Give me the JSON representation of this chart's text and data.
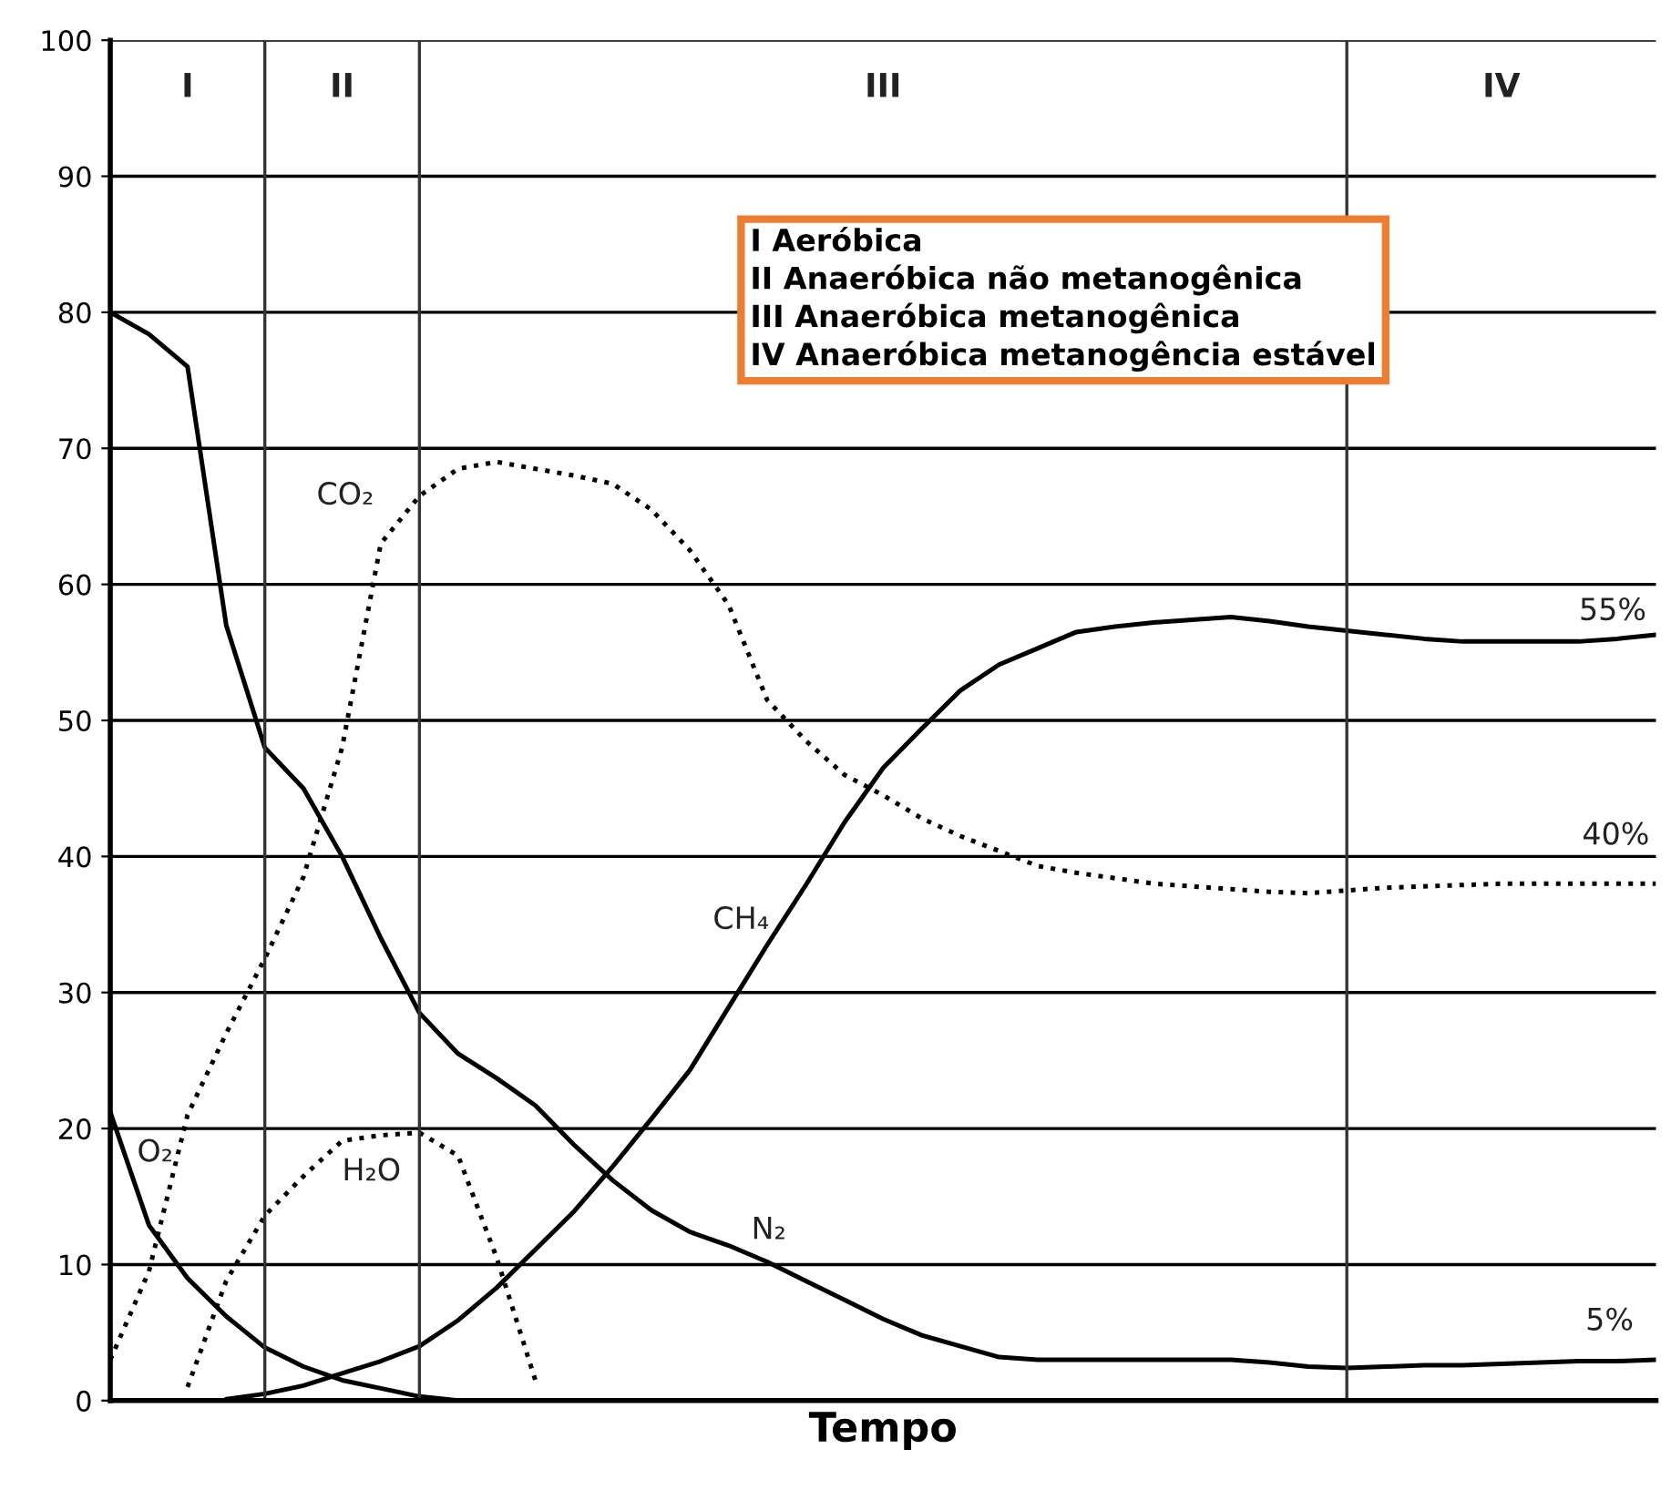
{
  "chart_data": {
    "type": "line",
    "xlabel": "Tempo",
    "categories": [
      null,
      null,
      null,
      null,
      null,
      null,
      null,
      null,
      null,
      null,
      null,
      null,
      null,
      null,
      null,
      null,
      null,
      null,
      null,
      null,
      null,
      null,
      null,
      null,
      null,
      null,
      null,
      null,
      null,
      null,
      null,
      null,
      null,
      null,
      null,
      null,
      null,
      null,
      null,
      null,
      null
    ],
    "ylim": [
      0,
      100
    ],
    "yticks": [
      0,
      10,
      20,
      30,
      40,
      50,
      60,
      70,
      80,
      90,
      100
    ],
    "grid": true,
    "marker": "none",
    "series": [
      {
        "color": "#000000",
        "line_style": "solid",
        "values": [
          80,
          78.4,
          76,
          57,
          48,
          45,
          40,
          34,
          28.5,
          25.5,
          23.7,
          21.7,
          18.8,
          16.2,
          14,
          12.4,
          11.4,
          10.2,
          8.8,
          7.4,
          6,
          4.8,
          4,
          3.2,
          3,
          3,
          3,
          3,
          3,
          3,
          2.8,
          2.5,
          2.4,
          2.5,
          2.6,
          2.6,
          2.7,
          2.8,
          2.9,
          2.9,
          3
        ]
      },
      {
        "color": "#000000",
        "line_style": "solid",
        "values": [
          21.2,
          12.9,
          9,
          6.2,
          3.9,
          2.5,
          1.5,
          0.9,
          0.3,
          0,
          null,
          null,
          null,
          null,
          null,
          null,
          null,
          null,
          null,
          null,
          null,
          null,
          null,
          null,
          null,
          null,
          null,
          null,
          null,
          null,
          null,
          null,
          null,
          null,
          null,
          null,
          null,
          null,
          null,
          null,
          null
        ]
      },
      {
        "color": "#000000",
        "line_style": "dotted",
        "values": [
          3,
          9.5,
          21,
          27,
          32.5,
          38.5,
          48,
          63,
          66.5,
          68.5,
          69,
          68.5,
          68,
          67.4,
          65.5,
          62.5,
          58.5,
          51.5,
          48.5,
          46,
          44.5,
          42.8,
          41.5,
          40.4,
          39.3,
          38.8,
          38.4,
          38,
          37.8,
          37.6,
          37.4,
          37.3,
          37.5,
          37.7,
          37.8,
          37.9,
          38,
          38,
          38,
          38,
          38
        ]
      },
      {
        "color": "#000000",
        "line_style": "dotted",
        "values": [
          null,
          null,
          1,
          8.8,
          13.6,
          16.5,
          19.1,
          19.5,
          19.7,
          18,
          10.5,
          1.5,
          null,
          null,
          null,
          null,
          null,
          null,
          null,
          null,
          null,
          null,
          null,
          null,
          null,
          null,
          null,
          null,
          null,
          null,
          null,
          null,
          null,
          null,
          null,
          null,
          null,
          null,
          null,
          null,
          null
        ]
      },
      {
        "color": "#000000",
        "line_style": "solid",
        "values": [
          null,
          null,
          null,
          0.1,
          0.5,
          1.1,
          2,
          2.9,
          4,
          5.9,
          8.3,
          11.1,
          13.9,
          17.2,
          20.7,
          24.3,
          28.9,
          33.5,
          37.9,
          42.5,
          46.5,
          49.4,
          52.2,
          54.1,
          55.3,
          56.5,
          56.9,
          57.2,
          57.4,
          57.6,
          57.3,
          56.9,
          56.6,
          56.3,
          56,
          55.8,
          55.8,
          55.8,
          55.8,
          56,
          56.3
        ]
      }
    ],
    "annotations": [
      "I Aeróbica\nII Anaeróbica não metanogênica\nIII Anaeróbica metanogênica\nIV Anaeróbica metanogência estável",
      "N₂",
      "O₂",
      "CO₂",
      "H₂O",
      "CH₄",
      "55%",
      "40%",
      "5%",
      "I",
      "II",
      "III",
      "IV"
    ]
  }
}
